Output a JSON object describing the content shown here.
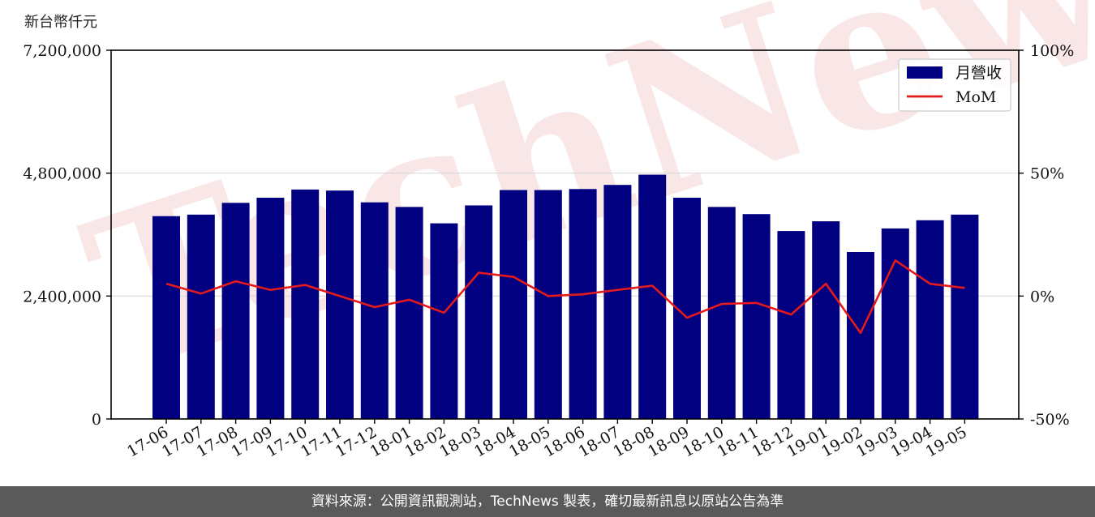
{
  "unit_label": "新台幣仟元",
  "footer_text": "資料來源：公開資訊觀測站，TechNews 製表，確切最新訊息以原站公告為準",
  "watermark": "TechNews",
  "colors": {
    "bar": "#000080",
    "line": "#e41a1c",
    "grid": "#d9d9d9",
    "footer_bg": "#5a5a5a",
    "watermark": "#f2c9c9"
  },
  "chart_data": {
    "type": "bar",
    "categories": [
      "17-06",
      "17-07",
      "17-08",
      "17-09",
      "17-10",
      "17-11",
      "17-12",
      "18-01",
      "18-02",
      "18-03",
      "18-04",
      "18-05",
      "18-06",
      "18-07",
      "18-08",
      "18-09",
      "18-10",
      "18-11",
      "18-12",
      "19-01",
      "19-02",
      "19-03",
      "19-04",
      "19-05"
    ],
    "series": [
      {
        "name": "月營收",
        "type": "bar",
        "axis": "left",
        "values": [
          3960000,
          3990000,
          4220000,
          4320000,
          4480000,
          4460000,
          4230000,
          4140000,
          3820000,
          4170000,
          4470000,
          4470000,
          4490000,
          4570000,
          4770000,
          4320000,
          4140000,
          4000000,
          3670000,
          3860000,
          3260000,
          3720000,
          3880000,
          3990000
        ]
      },
      {
        "name": "MoM",
        "type": "line",
        "axis": "right",
        "values": [
          5,
          1,
          6,
          2.5,
          4.5,
          0,
          -4.5,
          -1.5,
          -6.8,
          9.5,
          7.8,
          0,
          0.7,
          2.5,
          4.2,
          -8.8,
          -3.2,
          -2.8,
          -7.5,
          5,
          -15,
          14.5,
          5,
          3.3
        ]
      }
    ],
    "y_left": {
      "ylim": [
        0,
        7200000
      ],
      "ticks": [
        "0",
        "2,400,000",
        "4,800,000",
        "7,200,000"
      ],
      "tick_values": [
        0,
        2400000,
        4800000,
        7200000
      ]
    },
    "y_right": {
      "ylim": [
        -50,
        100
      ],
      "ticks": [
        "-50%",
        "0%",
        "50%",
        "100%"
      ],
      "tick_values": [
        -50,
        0,
        50,
        100
      ]
    },
    "grid": "horizontal",
    "legend_position": "top-right"
  }
}
